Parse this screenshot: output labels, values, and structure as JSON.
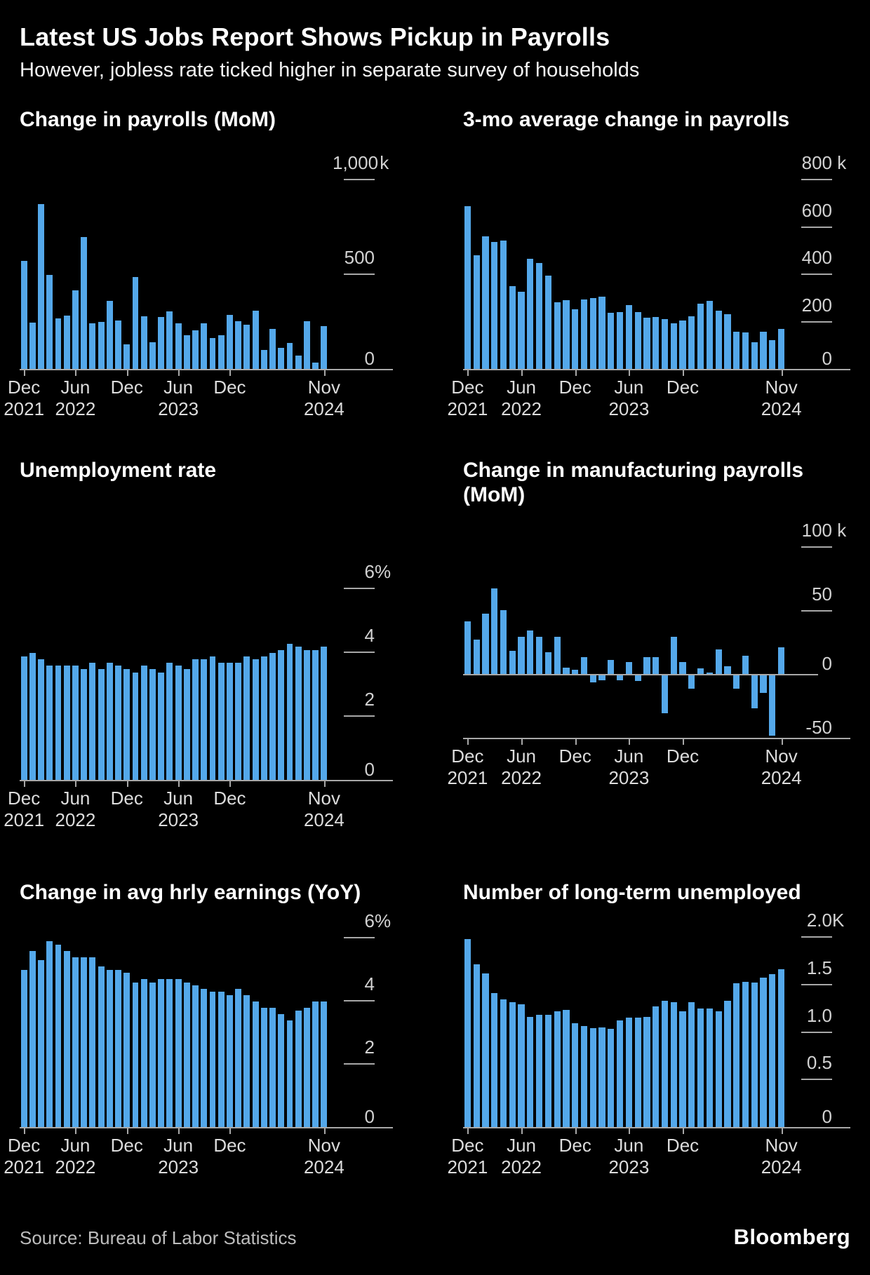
{
  "header": {
    "title": "Latest US Jobs Report Shows Pickup in Payrolls",
    "subtitle": "However, jobless rate ticked higher in separate survey of households"
  },
  "footer": {
    "source": "Source: Bureau of Labor Statistics",
    "brand": "Bloomberg"
  },
  "colors": {
    "background": "#000000",
    "bar": "#54A8EA",
    "axis_line": "#a8a8a8",
    "tick_label": "#d2d2d2",
    "title": "#ffffff"
  },
  "months": [
    "Dec 2021",
    "Jan 2022",
    "Feb 2022",
    "Mar 2022",
    "Apr 2022",
    "May 2022",
    "Jun 2022",
    "Jul 2022",
    "Aug 2022",
    "Sep 2022",
    "Oct 2022",
    "Nov 2022",
    "Dec 2022",
    "Jan 2023",
    "Feb 2023",
    "Mar 2023",
    "Apr 2023",
    "May 2023",
    "Jun 2023",
    "Jul 2023",
    "Aug 2023",
    "Sep 2023",
    "Oct 2023",
    "Nov 2023",
    "Dec 2023",
    "Jan 2024",
    "Feb 2024",
    "Mar 2024",
    "Apr 2024",
    "May 2024",
    "Jun 2024",
    "Jul 2024",
    "Aug 2024",
    "Sep 2024",
    "Oct 2024",
    "Nov 2024"
  ],
  "x_tick_labels": [
    {
      "month_index": 0,
      "line1": "Dec",
      "line2": "2021"
    },
    {
      "month_index": 6,
      "line1": "Jun",
      "line2": "2022"
    },
    {
      "month_index": 12,
      "line1": "Dec",
      "line2": ""
    },
    {
      "month_index": 18,
      "line1": "Jun",
      "line2": "2023"
    },
    {
      "month_index": 24,
      "line1": "Dec",
      "line2": ""
    },
    {
      "month_index": 35,
      "line1": "Nov",
      "line2": "2024"
    }
  ],
  "chart_data": [
    {
      "type": "bar",
      "title": "Change in payrolls (MoM)",
      "unit": "thousands of jobs",
      "ylim": [
        0,
        1200
      ],
      "grid": false,
      "yticks": [
        {
          "v": 1000,
          "num": "1,000",
          "suffix": " k"
        },
        {
          "v": 500,
          "num": "500",
          "suffix": ""
        },
        {
          "v": 0,
          "num": "0",
          "suffix": ""
        }
      ],
      "categories": [
        "Dec 2021",
        "Jan 2022",
        "Feb 2022",
        "Mar 2022",
        "Apr 2022",
        "May 2022",
        "Jun 2022",
        "Jul 2022",
        "Aug 2022",
        "Sep 2022",
        "Oct 2022",
        "Nov 2022",
        "Dec 2022",
        "Jan 2023",
        "Feb 2023",
        "Mar 2023",
        "Apr 2023",
        "May 2023",
        "Jun 2023",
        "Jul 2023",
        "Aug 2023",
        "Sep 2023",
        "Oct 2023",
        "Nov 2023",
        "Dec 2023",
        "Jan 2024",
        "Feb 2024",
        "Mar 2024",
        "Apr 2024",
        "May 2024",
        "Jun 2024",
        "Jul 2024",
        "Aug 2024",
        "Sep 2024",
        "Oct 2024",
        "Nov 2024"
      ],
      "values": [
        575,
        250,
        875,
        500,
        270,
        285,
        420,
        700,
        245,
        252,
        362,
        259,
        134,
        488,
        283,
        143,
        278,
        306,
        243,
        180,
        208,
        246,
        165,
        180,
        290,
        254,
        237,
        312,
        105,
        214,
        114,
        139,
        74,
        254,
        36,
        230
      ]
    },
    {
      "type": "bar",
      "title": "3-mo average change in payrolls",
      "unit": "thousands of jobs",
      "ylim": [
        0,
        960
      ],
      "grid": false,
      "yticks": [
        {
          "v": 800,
          "num": "800",
          "suffix": " k"
        },
        {
          "v": 600,
          "num": "600",
          "suffix": ""
        },
        {
          "v": 400,
          "num": "400",
          "suffix": ""
        },
        {
          "v": 200,
          "num": "200",
          "suffix": ""
        },
        {
          "v": 0,
          "num": "0",
          "suffix": ""
        }
      ],
      "categories": [
        "Dec 2021",
        "Jan 2022",
        "Feb 2022",
        "Mar 2022",
        "Apr 2022",
        "May 2022",
        "Jun 2022",
        "Jul 2022",
        "Aug 2022",
        "Sep 2022",
        "Oct 2022",
        "Nov 2022",
        "Dec 2022",
        "Jan 2023",
        "Feb 2023",
        "Mar 2023",
        "Apr 2023",
        "May 2023",
        "Jun 2023",
        "Jul 2023",
        "Aug 2023",
        "Sep 2023",
        "Oct 2023",
        "Nov 2023",
        "Dec 2023",
        "Jan 2024",
        "Feb 2024",
        "Mar 2024",
        "Apr 2024",
        "May 2024",
        "Jun 2024",
        "Jul 2024",
        "Aug 2024",
        "Sep 2024",
        "Oct 2024",
        "Nov 2024"
      ],
      "values": [
        690,
        483,
        563,
        540,
        545,
        353,
        330,
        468,
        450,
        397,
        285,
        293,
        255,
        296,
        302,
        308,
        240,
        243,
        273,
        243,
        219,
        222,
        213,
        196,
        207,
        225,
        279,
        290,
        249,
        234,
        160,
        157,
        116,
        160,
        124,
        172
      ]
    },
    {
      "type": "bar",
      "title": "Unemployment rate",
      "unit": "percent",
      "ylim": [
        0,
        8.1
      ],
      "grid": false,
      "yticks": [
        {
          "v": 6,
          "num": "6",
          "suffix": "%"
        },
        {
          "v": 4,
          "num": "4",
          "suffix": ""
        },
        {
          "v": 2,
          "num": "2",
          "suffix": ""
        },
        {
          "v": 0,
          "num": "0",
          "suffix": ""
        }
      ],
      "categories": [
        "Dec 2021",
        "Jan 2022",
        "Feb 2022",
        "Mar 2022",
        "Apr 2022",
        "May 2022",
        "Jun 2022",
        "Jul 2022",
        "Aug 2022",
        "Sep 2022",
        "Oct 2022",
        "Nov 2022",
        "Dec 2022",
        "Jan 2023",
        "Feb 2023",
        "Mar 2023",
        "Apr 2023",
        "May 2023",
        "Jun 2023",
        "Jul 2023",
        "Aug 2023",
        "Sep 2023",
        "Oct 2023",
        "Nov 2023",
        "Dec 2023",
        "Jan 2024",
        "Feb 2024",
        "Mar 2024",
        "Apr 2024",
        "May 2024",
        "Jun 2024",
        "Jul 2024",
        "Aug 2024",
        "Sep 2024",
        "Oct 2024",
        "Nov 2024"
      ],
      "values": [
        3.9,
        4.0,
        3.8,
        3.6,
        3.6,
        3.6,
        3.6,
        3.5,
        3.7,
        3.5,
        3.7,
        3.6,
        3.5,
        3.4,
        3.6,
        3.5,
        3.4,
        3.7,
        3.6,
        3.5,
        3.8,
        3.8,
        3.9,
        3.7,
        3.7,
        3.7,
        3.9,
        3.8,
        3.9,
        4.0,
        4.1,
        4.3,
        4.2,
        4.1,
        4.1,
        4.2
      ]
    },
    {
      "type": "bar",
      "title": "Change in manufacturing payrolls (MoM)",
      "unit": "thousands of jobs",
      "ylim": [
        -50,
        120
      ],
      "grid": false,
      "yticks": [
        {
          "v": 100,
          "num": "100",
          "suffix": " k"
        },
        {
          "v": 50,
          "num": "50",
          "suffix": ""
        },
        {
          "v": 0,
          "num": "0",
          "suffix": ""
        },
        {
          "v": -50,
          "num": "-50",
          "suffix": ""
        }
      ],
      "categories": [
        "Dec 2021",
        "Jan 2022",
        "Feb 2022",
        "Mar 2022",
        "Apr 2022",
        "May 2022",
        "Jun 2022",
        "Jul 2022",
        "Aug 2022",
        "Sep 2022",
        "Oct 2022",
        "Nov 2022",
        "Dec 2022",
        "Jan 2023",
        "Feb 2023",
        "Mar 2023",
        "Apr 2023",
        "May 2023",
        "Jun 2023",
        "Jul 2023",
        "Aug 2023",
        "Sep 2023",
        "Oct 2023",
        "Nov 2023",
        "Dec 2023",
        "Jan 2024",
        "Feb 2024",
        "Mar 2024",
        "Apr 2024",
        "May 2024",
        "Jun 2024",
        "Jul 2024",
        "Aug 2024",
        "Sep 2024",
        "Oct 2024",
        "Nov 2024"
      ],
      "values": [
        42,
        28,
        48,
        68,
        51,
        19,
        30,
        35,
        30,
        18,
        30,
        6,
        4,
        14,
        -6,
        -4,
        12,
        -4,
        10,
        -5,
        14,
        14,
        -30,
        30,
        10,
        -11,
        5,
        2,
        20,
        7,
        -11,
        15,
        -26,
        -14,
        -48,
        22
      ]
    },
    {
      "type": "bar",
      "title": "Change in avg hrly earnings (YoY)",
      "unit": "percent",
      "ylim": [
        0,
        6.73
      ],
      "grid": false,
      "yticks": [
        {
          "v": 6,
          "num": "6",
          "suffix": "%"
        },
        {
          "v": 4,
          "num": "4",
          "suffix": ""
        },
        {
          "v": 2,
          "num": "2",
          "suffix": ""
        },
        {
          "v": 0,
          "num": "0",
          "suffix": ""
        }
      ],
      "categories": [
        "Dec 2021",
        "Jan 2022",
        "Feb 2022",
        "Mar 2022",
        "Apr 2022",
        "May 2022",
        "Jun 2022",
        "Jul 2022",
        "Aug 2022",
        "Sep 2022",
        "Oct 2022",
        "Nov 2022",
        "Dec 2022",
        "Jan 2023",
        "Feb 2023",
        "Mar 2023",
        "Apr 2023",
        "May 2023",
        "Jun 2023",
        "Jul 2023",
        "Aug 2023",
        "Sep 2023",
        "Oct 2023",
        "Nov 2023",
        "Dec 2023",
        "Jan 2024",
        "Feb 2024",
        "Mar 2024",
        "Apr 2024",
        "May 2024",
        "Jun 2024",
        "Jul 2024",
        "Aug 2024",
        "Sep 2024",
        "Oct 2024",
        "Nov 2024"
      ],
      "values": [
        5.0,
        5.6,
        5.3,
        5.9,
        5.8,
        5.6,
        5.4,
        5.4,
        5.4,
        5.1,
        5.0,
        5.0,
        4.9,
        4.6,
        4.7,
        4.6,
        4.7,
        4.7,
        4.7,
        4.6,
        4.5,
        4.4,
        4.3,
        4.3,
        4.2,
        4.4,
        4.2,
        4.0,
        3.8,
        3.8,
        3.6,
        3.4,
        3.7,
        3.8,
        4.0,
        4.0
      ]
    },
    {
      "type": "bar",
      "title": "Number of long-term unemployed",
      "unit": "thousands of persons (K = thousand)",
      "ylim": [
        0,
        2.24
      ],
      "grid": false,
      "yticks": [
        {
          "v": 2,
          "num": "2.0",
          "suffix": "K"
        },
        {
          "v": 1.5,
          "num": "1.5",
          "suffix": ""
        },
        {
          "v": 1,
          "num": "1.0",
          "suffix": ""
        },
        {
          "v": 0.5,
          "num": "0.5",
          "suffix": ""
        },
        {
          "v": 0,
          "num": "0",
          "suffix": ""
        }
      ],
      "categories": [
        "Dec 2021",
        "Jan 2022",
        "Feb 2022",
        "Mar 2022",
        "Apr 2022",
        "May 2022",
        "Jun 2022",
        "Jul 2022",
        "Aug 2022",
        "Sep 2022",
        "Oct 2022",
        "Nov 2022",
        "Dec 2022",
        "Jan 2023",
        "Feb 2023",
        "Mar 2023",
        "Apr 2023",
        "May 2023",
        "Jun 2023",
        "Jul 2023",
        "Aug 2023",
        "Sep 2023",
        "Oct 2023",
        "Nov 2023",
        "Dec 2023",
        "Jan 2024",
        "Feb 2024",
        "Mar 2024",
        "Apr 2024",
        "May 2024",
        "Jun 2024",
        "Jul 2024",
        "Aug 2024",
        "Sep 2024",
        "Oct 2024",
        "Nov 2024"
      ],
      "values": [
        1.99,
        1.72,
        1.63,
        1.42,
        1.35,
        1.32,
        1.3,
        1.17,
        1.19,
        1.19,
        1.23,
        1.24,
        1.1,
        1.07,
        1.05,
        1.06,
        1.04,
        1.13,
        1.16,
        1.16,
        1.17,
        1.28,
        1.34,
        1.32,
        1.23,
        1.32,
        1.26,
        1.26,
        1.23,
        1.34,
        1.52,
        1.54,
        1.53,
        1.58,
        1.62,
        1.67
      ]
    }
  ]
}
